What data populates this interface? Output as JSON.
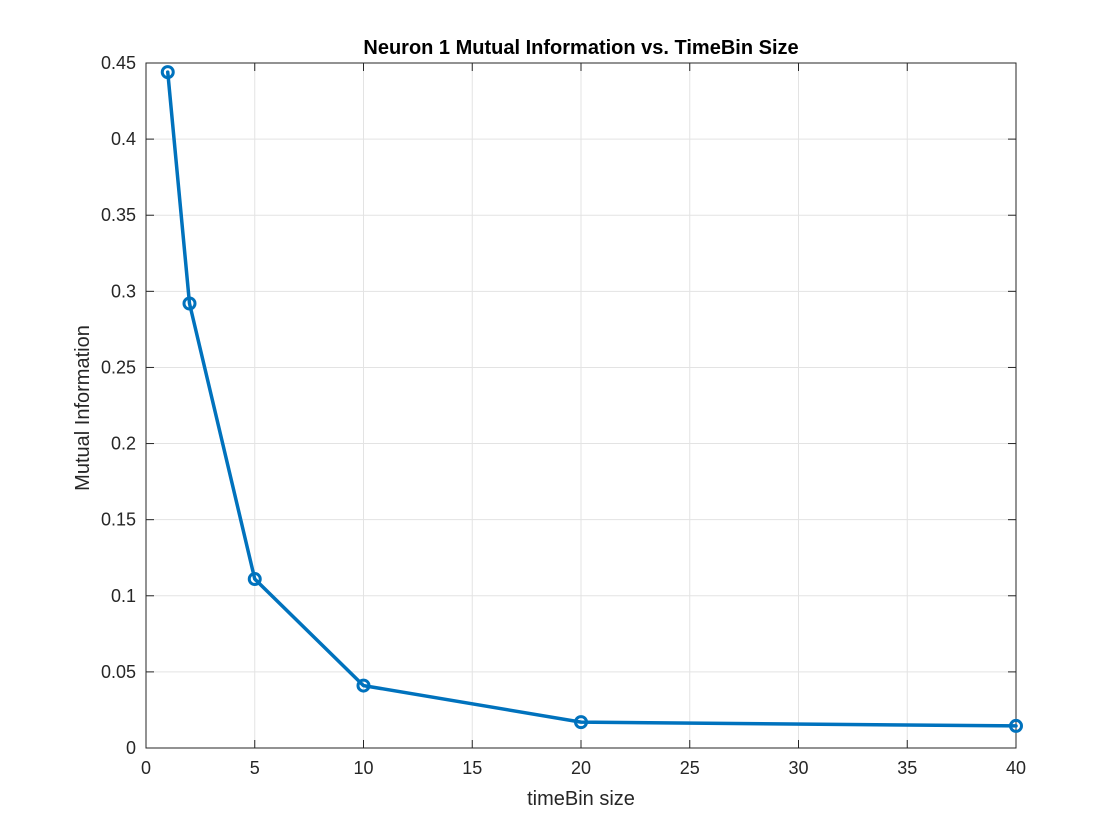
{
  "chart_data": {
    "type": "line",
    "title": "Neuron 1 Mutual Information vs. TimeBin Size",
    "xlabel": "timeBin size",
    "ylabel": "Mutual Information",
    "xlim": [
      0,
      40
    ],
    "ylim": [
      0,
      0.45
    ],
    "xticks": [
      0,
      5,
      10,
      15,
      20,
      25,
      30,
      35,
      40
    ],
    "yticks": [
      0,
      0.05,
      0.1,
      0.15,
      0.2,
      0.25,
      0.3,
      0.35,
      0.4,
      0.45
    ],
    "xtick_labels": [
      "0",
      "5",
      "10",
      "15",
      "20",
      "25",
      "30",
      "35",
      "40"
    ],
    "ytick_labels": [
      "0",
      "0.05",
      "0.1",
      "0.15",
      "0.2",
      "0.25",
      "0.3",
      "0.35",
      "0.4",
      "0.45"
    ],
    "grid": true,
    "box": true,
    "series": [
      {
        "x": [
          1,
          2,
          5,
          10,
          20,
          40
        ],
        "y": [
          0.444,
          0.292,
          0.111,
          0.041,
          0.017,
          0.0145
        ],
        "marker": "circle",
        "color": "#0072BD"
      }
    ]
  }
}
